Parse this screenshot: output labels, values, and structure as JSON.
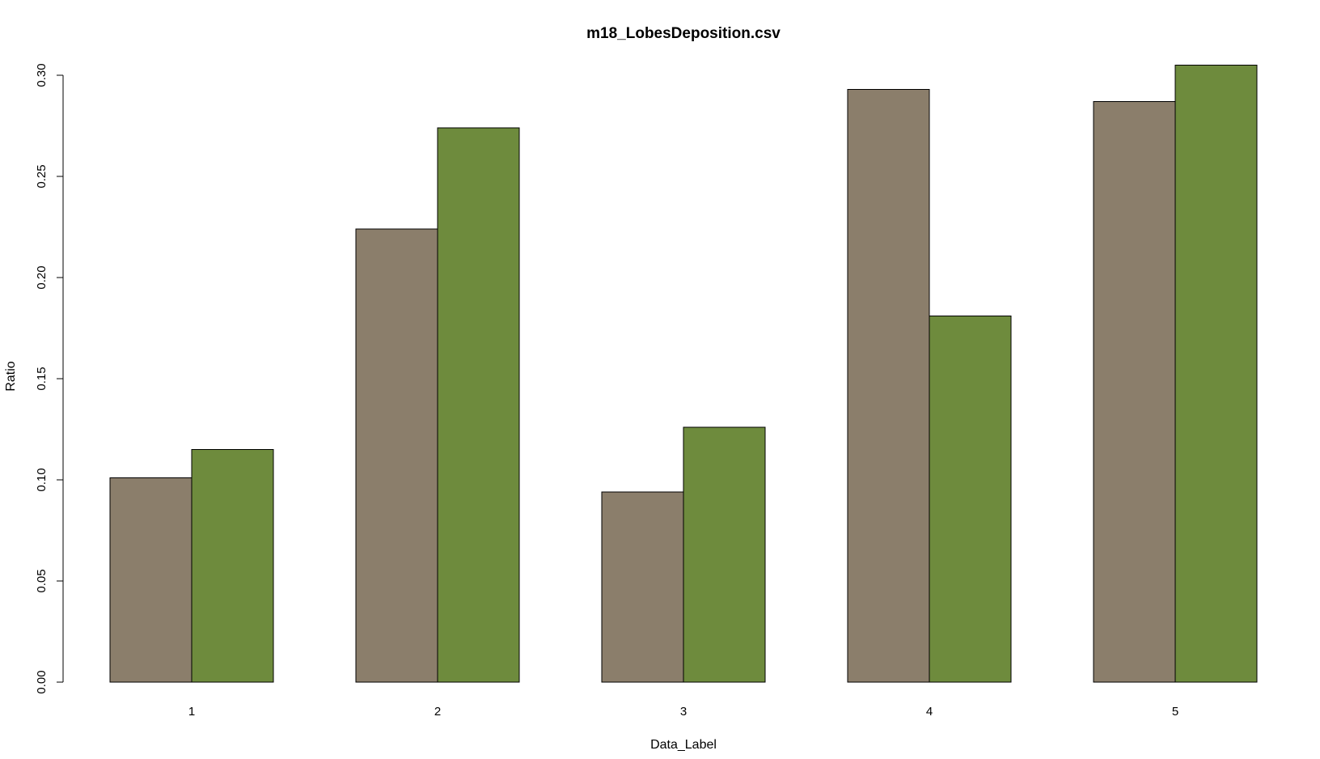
{
  "chart_data": {
    "type": "bar",
    "title": "m18_LobesDeposition.csv",
    "xlabel": "Data_Label",
    "ylabel": "Ratio",
    "categories": [
      "1",
      "2",
      "3",
      "4",
      "5"
    ],
    "series": [
      {
        "values": [
          0.101,
          0.224,
          0.094,
          0.293,
          0.287
        ],
        "color": "#8b7e6b"
      },
      {
        "values": [
          0.115,
          0.274,
          0.126,
          0.181,
          0.305
        ],
        "color": "#6e8b3d"
      }
    ],
    "ylim": [
      0,
      0.3
    ],
    "yticks": [
      "0.00",
      "0.05",
      "0.10",
      "0.15",
      "0.20",
      "0.25",
      "0.30"
    ],
    "grid": false,
    "legend": "none"
  }
}
